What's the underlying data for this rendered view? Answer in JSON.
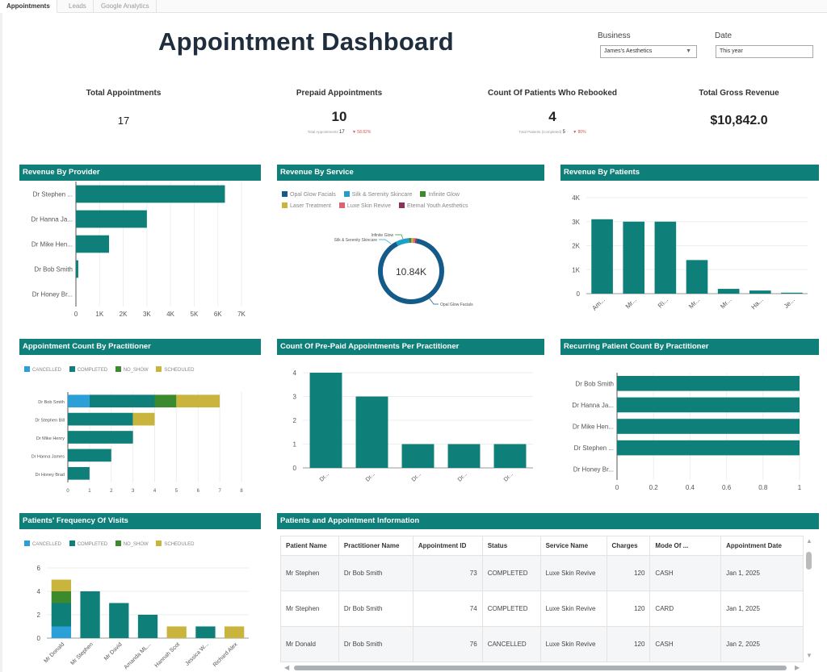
{
  "tabs": [
    {
      "label": "Appointments",
      "active": true
    },
    {
      "label": "Leads",
      "active": false
    },
    {
      "label": "Google Analytics",
      "active": false
    }
  ],
  "header": {
    "title": "Appointment Dashboard",
    "business_label": "Business",
    "business_value": "James's Aesthetics",
    "date_label": "Date",
    "date_value": "This year"
  },
  "kpis": [
    {
      "title": "Total Appointments",
      "value": "17"
    },
    {
      "title": "Prepaid Appointments",
      "value": "10",
      "sub_label": "Total Appointments",
      "sub_value": "17",
      "delta": "▼ 58.82%"
    },
    {
      "title": "Count Of Patients Who Rebooked",
      "value": "4",
      "sub_label": "Total Patients (Completed)",
      "sub_value": "5",
      "delta": "▼ 80%"
    },
    {
      "title": "Total Gross Revenue",
      "value": "$10,842.0"
    }
  ],
  "colors": {
    "primary": "#0e7f79",
    "cancelled": "#2a9fd8",
    "completed": "#0e7f79",
    "no_show": "#3c8a2e",
    "scheduled": "#c9b53d",
    "opal": "#145b8a",
    "silk": "#1ea0c8",
    "infinite": "#3c8a2e",
    "laser": "#c9b53d",
    "luxe": "#e0626f",
    "eternal": "#8b2f5b"
  },
  "chart_data": [
    {
      "id": "revenue-by-provider",
      "type": "bar",
      "orientation": "horizontal",
      "title": "Revenue By Provider",
      "categories": [
        "Dr Stephen ...",
        "Dr Hanna Ja...",
        "Dr Mike Hen...",
        "Dr Bob Smith",
        "Dr Honey Br..."
      ],
      "values": [
        6300,
        3000,
        1400,
        100,
        0
      ],
      "xticks": [
        "0",
        "1K",
        "2K",
        "3K",
        "4K",
        "5K",
        "6K",
        "7K"
      ],
      "xlim": [
        0,
        7000
      ]
    },
    {
      "id": "revenue-by-service",
      "type": "pie",
      "title": "Revenue By Service",
      "center_label": "10.84K",
      "legend": [
        "Opal Glow Facials",
        "Silk & Serenity Skincare",
        "Infinite Glow",
        "Laser Treatment",
        "Luxe Skin Revive",
        "Eternal Youth Aesthetics"
      ],
      "values": [
        9700,
        720,
        120,
        100,
        120,
        80
      ],
      "slice_labels": [
        "Opal Glow Facials",
        "Silk & Serenity Skincare",
        "Infinite Glow"
      ]
    },
    {
      "id": "revenue-by-patients",
      "type": "bar",
      "title": "Revenue By Patients",
      "categories": [
        "Am...",
        "Mr...",
        "Ri...",
        "Mr...",
        "Mr...",
        "Ha...",
        "Je..."
      ],
      "values": [
        3100,
        3000,
        3000,
        1400,
        200,
        130,
        40
      ],
      "yticks": [
        "0",
        "1K",
        "2K",
        "3K",
        "4K"
      ],
      "ylim": [
        0,
        4000
      ]
    },
    {
      "id": "appointment-count-by-practitioner",
      "type": "bar",
      "orientation": "horizontal",
      "stacked": true,
      "title": "Appointment Count By Practitioner",
      "legend": [
        "CANCELLED",
        "COMPLETED",
        "NO_SHOW",
        "SCHEDULED"
      ],
      "categories": [
        "Dr Bob Smith",
        "Dr Stephen Bill",
        "Dr Mike Henry",
        "Dr Hanna James",
        "Dr Honey Brad"
      ],
      "series": [
        {
          "name": "CANCELLED",
          "values": [
            1,
            0,
            0,
            0,
            0
          ]
        },
        {
          "name": "COMPLETED",
          "values": [
            3,
            3,
            3,
            2,
            1
          ]
        },
        {
          "name": "NO_SHOW",
          "values": [
            1,
            0,
            0,
            0,
            0
          ]
        },
        {
          "name": "SCHEDULED",
          "values": [
            2,
            1,
            0,
            0,
            0
          ]
        }
      ],
      "xticks": [
        "0",
        "1",
        "2",
        "3",
        "4",
        "5",
        "6",
        "7",
        "8"
      ],
      "xlim": [
        0,
        8
      ]
    },
    {
      "id": "prepaid-per-practitioner",
      "type": "bar",
      "title": "Count Of Pre-Paid Appointments Per Practitioner",
      "categories": [
        "Dr...",
        "Dr...",
        "Dr...",
        "Dr...",
        "Dr..."
      ],
      "values": [
        4,
        3,
        1,
        1,
        1
      ],
      "yticks": [
        "0",
        "1",
        "2",
        "3",
        "4"
      ],
      "ylim": [
        0,
        4
      ]
    },
    {
      "id": "recurring-patient-count",
      "type": "bar",
      "orientation": "horizontal",
      "title": "Recurring Patient Count By Practitioner",
      "categories": [
        "Dr Bob Smith",
        "Dr Hanna Ja...",
        "Dr Mike Hen...",
        "Dr Stephen ...",
        "Dr Honey Br..."
      ],
      "values": [
        1,
        1,
        1,
        1,
        0
      ],
      "xticks": [
        "0",
        "0.2",
        "0.4",
        "0.6",
        "0.8",
        "1"
      ],
      "xlim": [
        0,
        1
      ]
    },
    {
      "id": "patients-frequency-of-visits",
      "type": "bar",
      "stacked": true,
      "title": "Patients' Frequency Of Visits",
      "legend": [
        "CANCELLED",
        "COMPLETED",
        "NO_SHOW",
        "SCHEDULED"
      ],
      "categories": [
        "Mr Donald",
        "Mr Stephen",
        "Mr David",
        "Amanda ML...",
        "Hannah Scot",
        "Jessica W...",
        "Richard Alex"
      ],
      "series": [
        {
          "name": "CANCELLED",
          "values": [
            1,
            0,
            0,
            0,
            0,
            0,
            0
          ]
        },
        {
          "name": "COMPLETED",
          "values": [
            2,
            4,
            3,
            2,
            0,
            1,
            0
          ]
        },
        {
          "name": "NO_SHOW",
          "values": [
            1,
            0,
            0,
            0,
            0,
            0,
            0
          ]
        },
        {
          "name": "SCHEDULED",
          "values": [
            1,
            0,
            0,
            0,
            1,
            0,
            1
          ]
        }
      ],
      "yticks": [
        "0",
        "2",
        "4",
        "6"
      ],
      "ylim": [
        0,
        6
      ]
    }
  ],
  "table": {
    "title": "Patients and Appointment Information",
    "columns": [
      "Patient Name",
      "Practitioner Name",
      "Appointment ID",
      "Status",
      "Service Name",
      "Charges",
      "Mode Of ...",
      "Appointment Date"
    ],
    "rows": [
      [
        "Mr Stephen",
        "Dr Bob Smith",
        "73",
        "COMPLETED",
        "Luxe Skin Revive",
        "120",
        "CASH",
        "Jan 1, 2025"
      ],
      [
        "Mr Stephen",
        "Dr Bob Smith",
        "74",
        "COMPLETED",
        "Luxe Skin Revive",
        "120",
        "CARD",
        "Jan 1, 2025"
      ],
      [
        "Mr Donald",
        "Dr Bob Smith",
        "76",
        "CANCELLED",
        "Luxe Skin Revive",
        "120",
        "CASH",
        "Jan 2, 2025"
      ]
    ]
  }
}
